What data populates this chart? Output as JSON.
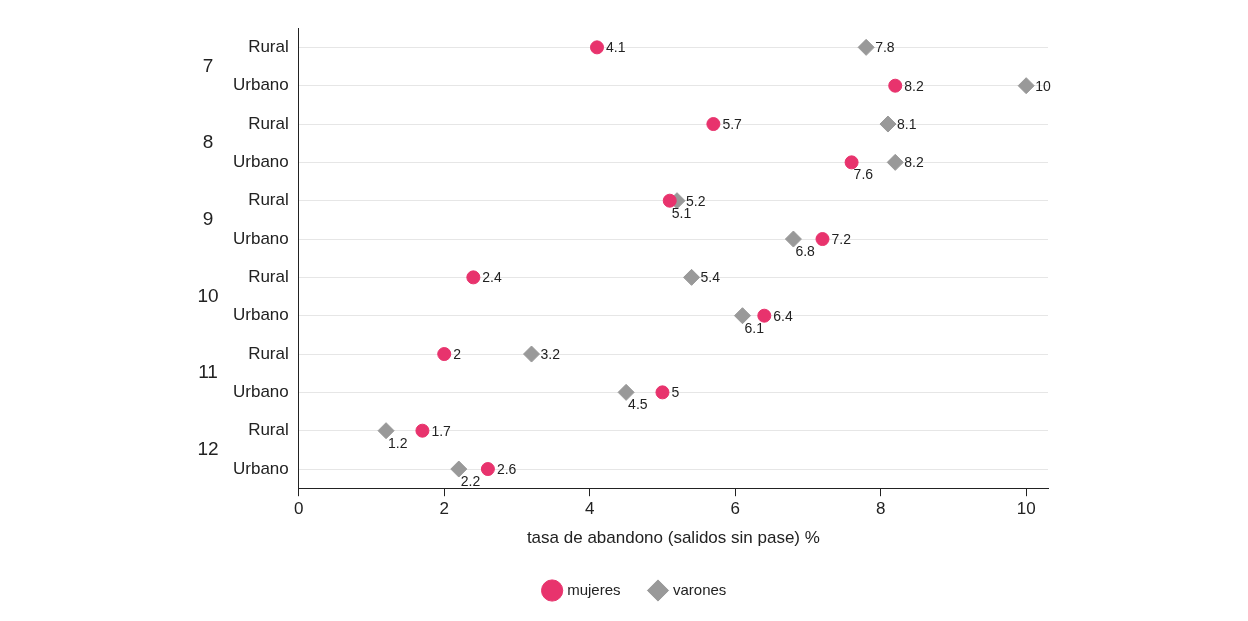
{
  "chart_data": {
    "type": "scatter",
    "orientation": "horizontal",
    "xlabel": "tasa de abandono (salidos sin pase) %",
    "categories": [
      "Rural",
      "Urbano",
      "Rural",
      "Urbano",
      "Rural",
      "Urbano",
      "Rural",
      "Urbano",
      "Rural",
      "Urbano",
      "Rural",
      "Urbano"
    ],
    "annotations": [
      "7",
      "8",
      "9",
      "10",
      "11",
      "12"
    ],
    "series": [
      {
        "name": "mujeres",
        "color": "#e8336d",
        "marker": "circle",
        "values": [
          4.1,
          8.2,
          5.7,
          7.6,
          5.1,
          7.2,
          2.4,
          6.4,
          2,
          5,
          1.7,
          2.6
        ]
      },
      {
        "name": "varones",
        "color": "#999999",
        "marker": "diamond",
        "values": [
          7.8,
          10,
          8.1,
          8.2,
          5.2,
          6.8,
          5.4,
          6.1,
          3.2,
          4.5,
          1.2,
          2.2
        ]
      }
    ],
    "xlim": [
      0,
      10.3
    ],
    "xticks": [
      0,
      2,
      4,
      6,
      8,
      10
    ],
    "grid": "y",
    "legend": "bottom",
    "data_labels": true
  }
}
